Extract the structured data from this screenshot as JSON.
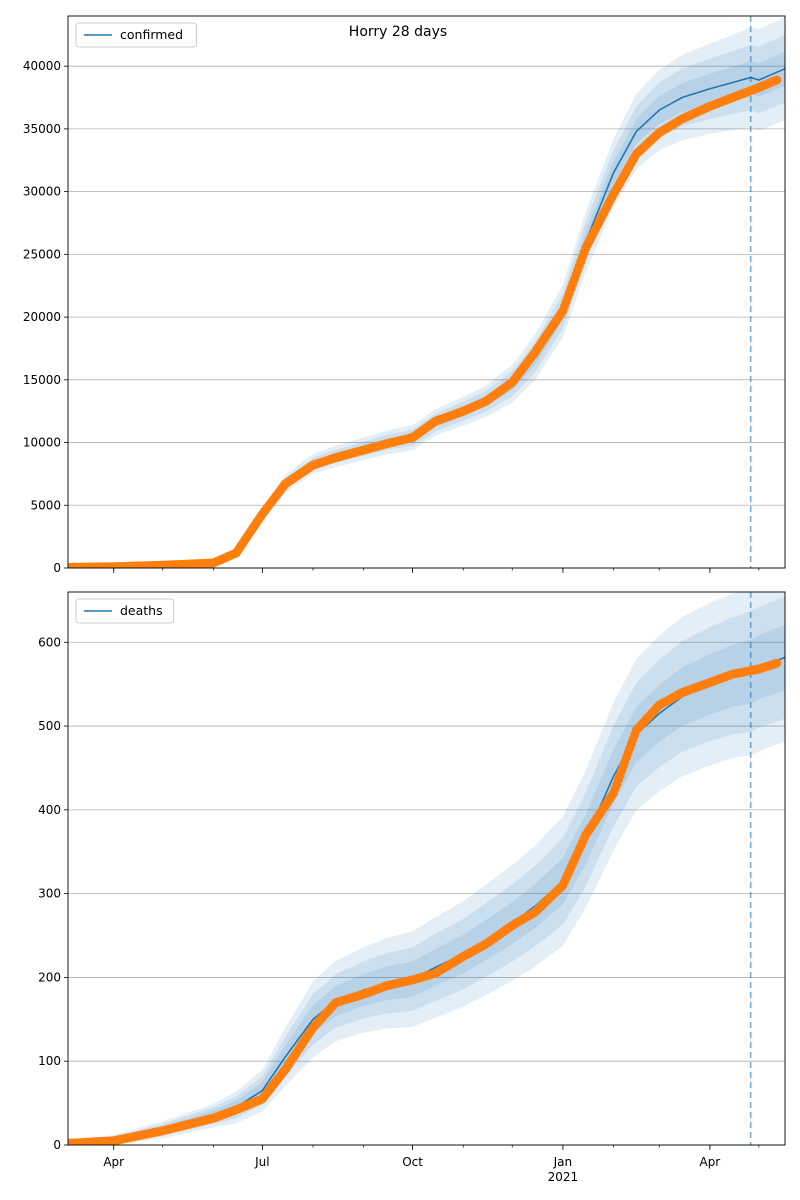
{
  "figure": {
    "title": "Horry 28 days"
  },
  "colors": {
    "model": "#1f77b4",
    "observed": "#ff7f0e",
    "band": "#1f77b4",
    "grid": "#b0b0b0"
  },
  "x_axis": {
    "ticks": [
      {
        "date": "2020-04-01",
        "label": "Apr"
      },
      {
        "date": "2020-07-01",
        "label": "Jul"
      },
      {
        "date": "2020-10-01",
        "label": "Oct"
      },
      {
        "date": "2021-01-01",
        "label": "Jan"
      },
      {
        "date": "2021-04-01",
        "label": "Apr"
      }
    ],
    "year_label": "2021",
    "range": [
      "2020-03-04",
      "2021-05-17"
    ],
    "forecast_start": "2021-04-26"
  },
  "chart_data": [
    {
      "type": "line",
      "legend": "confirmed",
      "legend_position": "top-left",
      "grid": "y",
      "ylim": [
        0,
        44000
      ],
      "yticks": [
        0,
        5000,
        10000,
        15000,
        20000,
        25000,
        30000,
        35000,
        40000
      ],
      "model_series": {
        "name": "confirmed",
        "x": [
          "2020-03-04",
          "2020-04-01",
          "2020-05-01",
          "2020-06-01",
          "2020-06-15",
          "2020-07-01",
          "2020-07-15",
          "2020-08-01",
          "2020-08-15",
          "2020-09-01",
          "2020-09-15",
          "2020-10-01",
          "2020-10-15",
          "2020-11-01",
          "2020-11-15",
          "2020-12-01",
          "2020-12-15",
          "2021-01-01",
          "2021-01-15",
          "2021-02-01",
          "2021-02-15",
          "2021-03-01",
          "2021-03-15",
          "2021-04-01",
          "2021-04-15",
          "2021-04-26",
          "2021-05-01",
          "2021-05-17"
        ],
        "values": [
          100,
          150,
          250,
          450,
          1300,
          4300,
          6700,
          8300,
          8900,
          9500,
          10000,
          10400,
          11600,
          12500,
          13300,
          14700,
          16800,
          20500,
          26000,
          31500,
          34800,
          36500,
          37500,
          38200,
          38700,
          39100,
          38900,
          39800
        ],
        "band_halfwidths": [
          [
            0,
            0,
            0,
            0,
            60,
            150,
            220,
            250,
            260,
            280,
            300,
            330,
            350,
            380,
            420,
            500,
            600,
            700,
            800,
            900,
            1000,
            1100,
            1150,
            1200,
            1250,
            1300,
            1320,
            1350
          ],
          [
            0,
            0,
            0,
            0,
            120,
            300,
            450,
            500,
            520,
            560,
            600,
            650,
            700,
            760,
            840,
            1000,
            1200,
            1400,
            1600,
            1800,
            2000,
            2200,
            2300,
            2400,
            2500,
            2600,
            2650,
            2700
          ],
          [
            0,
            0,
            0,
            0,
            200,
            450,
            700,
            800,
            850,
            900,
            950,
            1000,
            1050,
            1150,
            1250,
            1500,
            1800,
            2100,
            2400,
            2700,
            3000,
            3200,
            3400,
            3600,
            3800,
            4000,
            4050,
            4100
          ]
        ]
      },
      "observed": {
        "x": [
          "2020-03-04",
          "2020-04-01",
          "2020-05-01",
          "2020-06-01",
          "2020-06-15",
          "2020-07-01",
          "2020-07-15",
          "2020-08-01",
          "2020-08-15",
          "2020-09-01",
          "2020-09-15",
          "2020-10-01",
          "2020-10-15",
          "2020-11-01",
          "2020-11-15",
          "2020-12-01",
          "2020-12-15",
          "2021-01-01",
          "2021-01-15",
          "2021-02-01",
          "2021-02-15",
          "2021-03-01",
          "2021-03-15",
          "2021-04-01",
          "2021-04-15",
          "2021-05-01",
          "2021-05-12"
        ],
        "values": [
          50,
          100,
          220,
          400,
          1200,
          4300,
          6700,
          8200,
          8800,
          9400,
          9900,
          10400,
          11700,
          12500,
          13300,
          14800,
          17200,
          20500,
          25500,
          29800,
          33000,
          34700,
          35800,
          36800,
          37500,
          38300,
          38900
        ]
      }
    },
    {
      "type": "line",
      "legend": "deaths",
      "legend_position": "top-left",
      "grid": "y",
      "ylim": [
        0,
        660
      ],
      "yticks": [
        0,
        100,
        200,
        300,
        400,
        500,
        600
      ],
      "model_series": {
        "name": "deaths",
        "x": [
          "2020-03-04",
          "2020-04-01",
          "2020-05-01",
          "2020-06-01",
          "2020-06-15",
          "2020-07-01",
          "2020-07-15",
          "2020-08-01",
          "2020-08-15",
          "2020-09-01",
          "2020-09-15",
          "2020-10-01",
          "2020-10-15",
          "2020-11-01",
          "2020-11-15",
          "2020-12-01",
          "2020-12-15",
          "2021-01-01",
          "2021-01-15",
          "2021-02-01",
          "2021-02-15",
          "2021-03-01",
          "2021-03-15",
          "2021-04-01",
          "2021-04-15",
          "2021-04-26",
          "2021-05-01",
          "2021-05-17"
        ],
        "values": [
          2,
          6,
          18,
          35,
          45,
          65,
          105,
          150,
          172,
          185,
          193,
          198,
          212,
          228,
          245,
          265,
          285,
          315,
          365,
          440,
          490,
          515,
          535,
          550,
          560,
          565,
          570,
          582
        ],
        "band_halfwidths": [
          [
            1,
            2,
            4,
            6,
            8,
            10,
            14,
            17,
            18,
            19,
            20,
            21,
            22,
            23,
            24,
            25,
            26,
            28,
            30,
            32,
            33,
            34,
            35,
            36,
            37,
            38,
            38,
            39
          ],
          [
            2,
            4,
            7,
            10,
            13,
            17,
            24,
            30,
            32,
            34,
            36,
            38,
            40,
            42,
            44,
            46,
            48,
            52,
            56,
            60,
            62,
            64,
            66,
            68,
            70,
            72,
            72,
            73
          ],
          [
            3,
            6,
            10,
            14,
            19,
            25,
            35,
            45,
            48,
            51,
            54,
            57,
            60,
            63,
            66,
            69,
            72,
            77,
            82,
            88,
            90,
            93,
            95,
            97,
            98,
            100,
            100,
            100
          ]
        ]
      },
      "observed": {
        "x": [
          "2020-03-04",
          "2020-04-01",
          "2020-05-01",
          "2020-06-01",
          "2020-06-15",
          "2020-07-01",
          "2020-07-15",
          "2020-08-01",
          "2020-08-15",
          "2020-09-01",
          "2020-09-15",
          "2020-10-01",
          "2020-10-15",
          "2020-11-01",
          "2020-11-15",
          "2020-12-01",
          "2020-12-15",
          "2021-01-01",
          "2021-01-15",
          "2021-02-01",
          "2021-02-15",
          "2021-03-01",
          "2021-03-15",
          "2021-04-01",
          "2021-04-15",
          "2021-05-01",
          "2021-05-12"
        ],
        "values": [
          2,
          5,
          17,
          32,
          42,
          55,
          90,
          140,
          170,
          180,
          190,
          197,
          205,
          225,
          240,
          262,
          278,
          310,
          370,
          420,
          495,
          525,
          540,
          552,
          562,
          568,
          575
        ]
      }
    }
  ]
}
